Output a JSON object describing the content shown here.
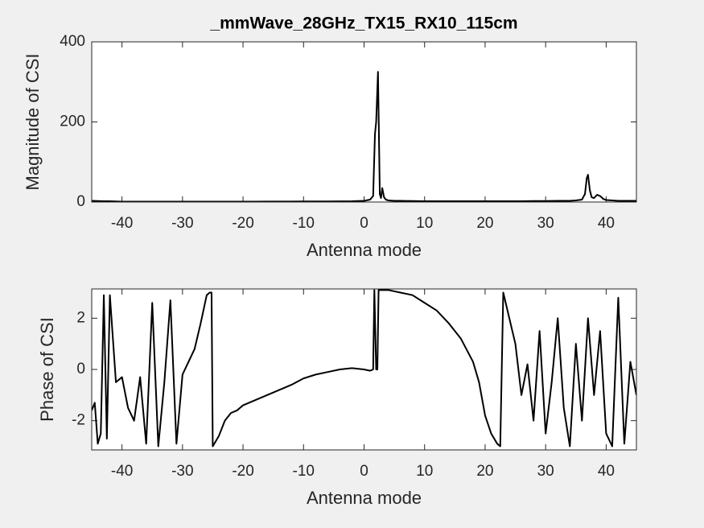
{
  "chart_data": [
    {
      "type": "line",
      "title": "_mmWave_28GHz_TX15_RX10_115cm",
      "x_label": "Antenna mode",
      "y_label": "Magnitude of CSI",
      "xlim": [
        -45,
        45
      ],
      "ylim": [
        0,
        400
      ],
      "xticks": [
        -40,
        -30,
        -20,
        -10,
        0,
        10,
        20,
        30,
        40
      ],
      "yticks": [
        0,
        200,
        400
      ],
      "color": "#000000",
      "x": [
        -45,
        -44,
        -43,
        -42,
        -41,
        -40,
        -38,
        -36,
        -34,
        -32,
        -30,
        -28,
        -26,
        -24,
        -22,
        -20,
        -18,
        -16,
        -14,
        -12,
        -10,
        -8,
        -6,
        -4,
        -2,
        -1,
        0,
        1,
        1.5,
        1.8,
        2,
        2.3,
        2.6,
        2.8,
        3,
        3.3,
        3.6,
        4,
        5,
        6,
        8,
        10,
        12,
        14,
        16,
        18,
        20,
        22,
        24,
        26,
        28,
        30,
        32,
        34,
        35,
        36,
        36.5,
        36.8,
        37,
        37.3,
        37.6,
        38,
        38.5,
        39,
        39.5,
        40,
        41,
        42,
        43,
        44,
        45
      ],
      "values": [
        3,
        2.5,
        2,
        2,
        1.5,
        1,
        1,
        1,
        1,
        1,
        1,
        1,
        1,
        1,
        1,
        1,
        1,
        1.2,
        1.2,
        1.3,
        1.4,
        1.5,
        1.6,
        1.8,
        2,
        2.5,
        3,
        6,
        15,
        170,
        200,
        325,
        20,
        10,
        35,
        12,
        6,
        4,
        3,
        3,
        2.5,
        2,
        2,
        2,
        2,
        2,
        2,
        2,
        2,
        2,
        2.5,
        2.5,
        3,
        3,
        4,
        6,
        20,
        60,
        68,
        30,
        12,
        10,
        18,
        15,
        8,
        5,
        4,
        3,
        3,
        3,
        3
      ]
    },
    {
      "type": "line",
      "x_label": "Antenna mode",
      "y_label": "Phase of CSI",
      "xlim": [
        -45,
        45
      ],
      "ylim": [
        -3.1416,
        3.1416
      ],
      "xticks": [
        -40,
        -30,
        -20,
        -10,
        0,
        10,
        20,
        30,
        40
      ],
      "yticks": [
        -2,
        0,
        2
      ],
      "color": "#000000",
      "x": [
        -45,
        -44.5,
        -44,
        -43.5,
        -43,
        -42.5,
        -42,
        -41,
        -40,
        -39,
        -38,
        -37,
        -36,
        -35,
        -34,
        -33,
        -32,
        -31,
        -30,
        -29,
        -28,
        -27,
        -26,
        -25.5,
        -25.2,
        -25,
        -24,
        -23,
        -22,
        -21,
        -20,
        -18,
        -16,
        -14,
        -12,
        -10,
        -8,
        -6,
        -4,
        -2,
        0,
        1,
        1.5,
        1.7,
        2,
        2.2,
        2.4,
        4,
        6,
        8,
        10,
        12,
        14,
        16,
        18,
        19,
        20,
        21,
        22,
        22.5,
        23,
        24,
        25,
        26,
        27,
        28,
        29,
        30,
        31,
        32,
        33,
        34,
        35,
        36,
        37,
        38,
        39,
        40,
        41,
        42,
        43,
        44,
        45
      ],
      "values": [
        -1.6,
        -1.3,
        -2.9,
        -2.5,
        2.9,
        -2.7,
        2.9,
        -0.5,
        -0.3,
        -1.5,
        -2.0,
        -0.3,
        -2.9,
        2.6,
        -3.0,
        -0.5,
        2.7,
        -2.9,
        -0.2,
        0.3,
        0.8,
        1.8,
        2.9,
        3.0,
        3.0,
        -3.0,
        -2.6,
        -2.0,
        -1.7,
        -1.6,
        -1.4,
        -1.2,
        -1.0,
        -0.8,
        -0.6,
        -0.35,
        -0.2,
        -0.1,
        0,
        0.05,
        0,
        -0.05,
        0,
        3.1,
        0,
        0,
        3.1,
        3.1,
        3.0,
        2.9,
        2.6,
        2.3,
        1.8,
        1.2,
        0.3,
        -0.5,
        -1.8,
        -2.5,
        -2.9,
        -3.0,
        3.0,
        2.0,
        1.0,
        -1.0,
        0.2,
        -2.0,
        1.5,
        -2.5,
        -0.5,
        2.0,
        -1.5,
        -3.0,
        1.0,
        -2.0,
        2.0,
        -1.0,
        1.5,
        -2.5,
        -3.0,
        2.8,
        -2.9,
        0.3,
        -1.0
      ]
    }
  ]
}
